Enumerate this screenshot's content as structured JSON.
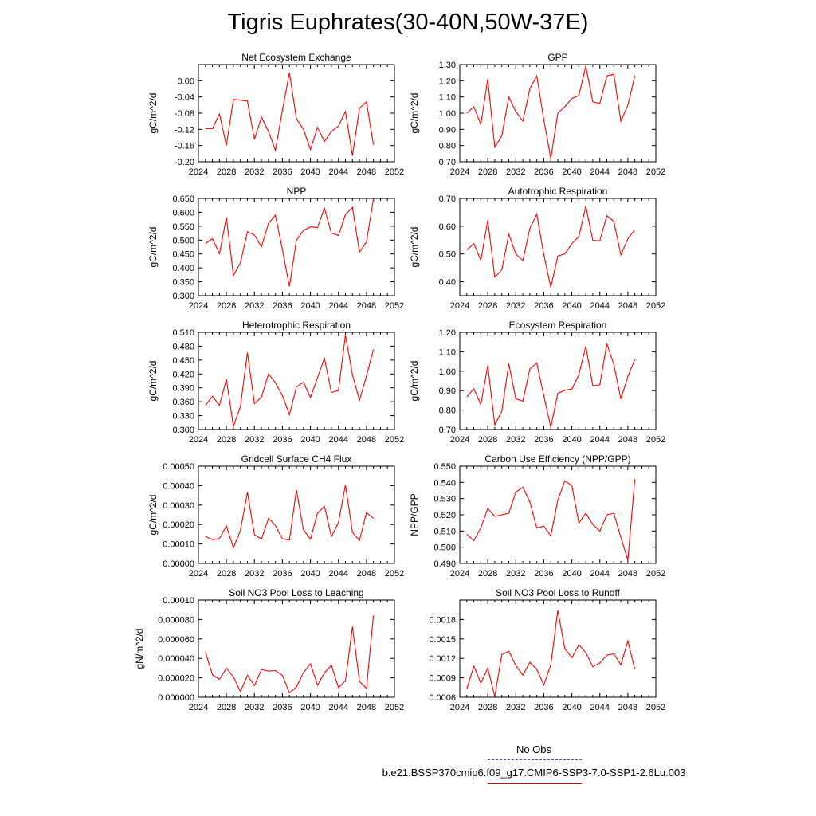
{
  "title": "Tigris Euphrates(30-40N,50W-37E)",
  "colors": {
    "series": "#ff0000",
    "axis": "#000000",
    "noobs": "#5050c8"
  },
  "legend": {
    "noobs_label": "No Obs",
    "case_label": "b.e21.BSSP370cmip6.f09_g17.CMIP6-SSP3-7.0-SSP1-2.6Lu.003"
  },
  "chart_data": [
    {
      "type": "line",
      "title": "Net Ecosystem Exchange",
      "ylabel": "gC/m^2/d",
      "xlim": [
        2024,
        2052
      ],
      "xticks": [
        "2024",
        "2028",
        "2032",
        "2036",
        "2040",
        "2044",
        "2048",
        "2052"
      ],
      "ylim": [
        -0.2,
        0.04
      ],
      "yticks": [
        "-0.20",
        "-0.16",
        "-0.12",
        "-0.08",
        "-0.04",
        "0.00"
      ],
      "ytick_values": [
        -0.2,
        -0.16,
        -0.12,
        -0.08,
        -0.04,
        0.0
      ],
      "x": [
        2025,
        2026,
        2027,
        2028,
        2029,
        2030,
        2031,
        2032,
        2033,
        2034,
        2035,
        2036,
        2037,
        2038,
        2039,
        2040,
        2041,
        2042,
        2043,
        2044,
        2045,
        2046,
        2047,
        2048,
        2049
      ],
      "values": [
        -0.118,
        -0.118,
        -0.082,
        -0.16,
        -0.046,
        -0.048,
        -0.05,
        -0.145,
        -0.09,
        -0.125,
        -0.172,
        -0.073,
        0.02,
        -0.094,
        -0.12,
        -0.17,
        -0.115,
        -0.15,
        -0.125,
        -0.112,
        -0.076,
        -0.185,
        -0.068,
        -0.052,
        -0.158
      ]
    },
    {
      "type": "line",
      "title": "GPP",
      "ylabel": "gC/m^2/d",
      "xlim": [
        2024,
        2052
      ],
      "xticks": [
        "2024",
        "2028",
        "2032",
        "2036",
        "2040",
        "2044",
        "2048",
        "2052"
      ],
      "ylim": [
        0.7,
        1.3
      ],
      "yticks": [
        "0.70",
        "0.80",
        "0.90",
        "1.00",
        "1.10",
        "1.20",
        "1.30"
      ],
      "ytick_values": [
        0.7,
        0.8,
        0.9,
        1.0,
        1.1,
        1.2,
        1.3
      ],
      "x": [
        2025,
        2026,
        2027,
        2028,
        2029,
        2030,
        2031,
        2032,
        2033,
        2034,
        2035,
        2036,
        2037,
        2038,
        2039,
        2040,
        2041,
        2042,
        2043,
        2044,
        2045,
        2046,
        2047,
        2048,
        2049
      ],
      "values": [
        1.0,
        1.04,
        0.93,
        1.21,
        0.79,
        0.86,
        1.1,
        1.01,
        0.95,
        1.15,
        1.23,
        0.96,
        0.72,
        1.0,
        1.04,
        1.09,
        1.11,
        1.29,
        1.07,
        1.06,
        1.23,
        1.24,
        0.95,
        1.05,
        1.23
      ]
    },
    {
      "type": "line",
      "title": "NPP",
      "ylabel": "gC/m^2/d",
      "xlim": [
        2024,
        2052
      ],
      "xticks": [
        "2024",
        "2028",
        "2032",
        "2036",
        "2040",
        "2044",
        "2048",
        "2052"
      ],
      "ylim": [
        0.3,
        0.65
      ],
      "yticks": [
        "0.300",
        "0.350",
        "0.400",
        "0.450",
        "0.500",
        "0.550",
        "0.600",
        "0.650"
      ],
      "ytick_values": [
        0.3,
        0.35,
        0.4,
        0.45,
        0.5,
        0.55,
        0.6,
        0.65
      ],
      "x": [
        2025,
        2026,
        2027,
        2028,
        2029,
        2030,
        2031,
        2032,
        2033,
        2034,
        2035,
        2036,
        2037,
        2038,
        2039,
        2040,
        2041,
        2042,
        2043,
        2044,
        2045,
        2046,
        2047,
        2048,
        2049
      ],
      "values": [
        0.488,
        0.505,
        0.451,
        0.583,
        0.373,
        0.418,
        0.53,
        0.518,
        0.476,
        0.56,
        0.59,
        0.466,
        0.333,
        0.5,
        0.535,
        0.548,
        0.545,
        0.615,
        0.525,
        0.517,
        0.592,
        0.618,
        0.457,
        0.493,
        0.648
      ]
    },
    {
      "type": "line",
      "title": "Autotrophic Respiration",
      "ylabel": "gC/m^2/d",
      "xlim": [
        2024,
        2052
      ],
      "xticks": [
        "2024",
        "2028",
        "2032",
        "2036",
        "2040",
        "2044",
        "2048",
        "2052"
      ],
      "ylim": [
        0.35,
        0.7
      ],
      "yticks": [
        "0.40",
        "0.50",
        "0.60",
        "0.70"
      ],
      "ytick_values": [
        0.4,
        0.5,
        0.6,
        0.7
      ],
      "x": [
        2025,
        2026,
        2027,
        2028,
        2029,
        2030,
        2031,
        2032,
        2033,
        2034,
        2035,
        2036,
        2037,
        2038,
        2039,
        2040,
        2041,
        2042,
        2043,
        2044,
        2045,
        2046,
        2047,
        2048,
        2049
      ],
      "values": [
        0.515,
        0.537,
        0.477,
        0.622,
        0.417,
        0.443,
        0.571,
        0.5,
        0.476,
        0.592,
        0.643,
        0.498,
        0.38,
        0.493,
        0.5,
        0.537,
        0.563,
        0.672,
        0.549,
        0.547,
        0.638,
        0.617,
        0.496,
        0.555,
        0.587
      ]
    },
    {
      "type": "line",
      "title": "Heterotrophic Respiration",
      "ylabel": "gC/m^2/d",
      "xlim": [
        2024,
        2052
      ],
      "xticks": [
        "2024",
        "2028",
        "2032",
        "2036",
        "2040",
        "2044",
        "2048",
        "2052"
      ],
      "ylim": [
        0.3,
        0.51
      ],
      "yticks": [
        "0.300",
        "0.330",
        "0.360",
        "0.390",
        "0.420",
        "0.450",
        "0.480",
        "0.510"
      ],
      "ytick_values": [
        0.3,
        0.33,
        0.36,
        0.39,
        0.42,
        0.45,
        0.48,
        0.51
      ],
      "x": [
        2025,
        2026,
        2027,
        2028,
        2029,
        2030,
        2031,
        2032,
        2033,
        2034,
        2035,
        2036,
        2037,
        2038,
        2039,
        2040,
        2041,
        2042,
        2043,
        2044,
        2045,
        2046,
        2047,
        2048,
        2049
      ],
      "values": [
        0.352,
        0.372,
        0.352,
        0.409,
        0.307,
        0.35,
        0.466,
        0.356,
        0.37,
        0.42,
        0.401,
        0.373,
        0.332,
        0.392,
        0.402,
        0.369,
        0.412,
        0.454,
        0.38,
        0.384,
        0.504,
        0.418,
        0.363,
        0.416,
        0.473
      ]
    },
    {
      "type": "line",
      "title": "Ecosystem Respiration",
      "ylabel": "gC/m^2/d",
      "xlim": [
        2024,
        2052
      ],
      "xticks": [
        "2024",
        "2028",
        "2032",
        "2036",
        "2040",
        "2044",
        "2048",
        "2052"
      ],
      "ylim": [
        0.7,
        1.2
      ],
      "yticks": [
        "0.70",
        "0.80",
        "0.90",
        "1.00",
        "1.10",
        "1.20"
      ],
      "ytick_values": [
        0.7,
        0.8,
        0.9,
        1.0,
        1.1,
        1.2
      ],
      "x": [
        2025,
        2026,
        2027,
        2028,
        2029,
        2030,
        2031,
        2032,
        2033,
        2034,
        2035,
        2036,
        2037,
        2038,
        2039,
        2040,
        2041,
        2042,
        2043,
        2044,
        2045,
        2046,
        2047,
        2048,
        2049
      ],
      "values": [
        0.868,
        0.91,
        0.828,
        1.03,
        0.724,
        0.794,
        1.038,
        0.858,
        0.846,
        1.012,
        1.042,
        0.874,
        0.712,
        0.886,
        0.902,
        0.908,
        0.982,
        1.128,
        0.926,
        0.93,
        1.142,
        1.034,
        0.857,
        0.973,
        1.06
      ]
    },
    {
      "type": "line",
      "title": "Gridcell Surface CH4 Flux",
      "ylabel": "gC/m^2/d",
      "xlim": [
        2024,
        2052
      ],
      "xticks": [
        "2024",
        "2028",
        "2032",
        "2036",
        "2040",
        "2044",
        "2048",
        "2052"
      ],
      "ylim": [
        0.0,
        0.0005
      ],
      "yticks": [
        "0.00000",
        "0.00010",
        "0.00020",
        "0.00030",
        "0.00040",
        "0.00050"
      ],
      "ytick_values": [
        0.0,
        0.0001,
        0.0002,
        0.0003,
        0.0004,
        0.0005
      ],
      "x": [
        2025,
        2026,
        2027,
        2028,
        2029,
        2030,
        2031,
        2032,
        2033,
        2034,
        2035,
        2036,
        2037,
        2038,
        2039,
        2040,
        2041,
        2042,
        2043,
        2044,
        2045,
        2046,
        2047,
        2048,
        2049
      ],
      "values": [
        0.000138,
        0.000122,
        0.000128,
        0.000193,
        8e-05,
        0.00017,
        0.000365,
        0.000148,
        0.000125,
        0.000232,
        0.000195,
        0.000127,
        0.00012,
        0.000378,
        0.000173,
        0.000125,
        0.000258,
        0.000294,
        0.000138,
        0.00021,
        0.000404,
        0.00016,
        0.000118,
        0.000262,
        0.000232
      ]
    },
    {
      "type": "line",
      "title": "Carbon Use Efficiency (NPP/GPP)",
      "ylabel": "NPP/GPP",
      "xlim": [
        2024,
        2052
      ],
      "xticks": [
        "2024",
        "2028",
        "2032",
        "2036",
        "2040",
        "2044",
        "2048",
        "2052"
      ],
      "ylim": [
        0.49,
        0.55
      ],
      "yticks": [
        "0.490",
        "0.500",
        "0.510",
        "0.520",
        "0.530",
        "0.540",
        "0.550"
      ],
      "ytick_values": [
        0.49,
        0.5,
        0.51,
        0.52,
        0.53,
        0.54,
        0.55
      ],
      "x": [
        2025,
        2026,
        2027,
        2028,
        2029,
        2030,
        2031,
        2032,
        2033,
        2034,
        2035,
        2036,
        2037,
        2038,
        2039,
        2040,
        2041,
        2042,
        2043,
        2044,
        2045,
        2046,
        2047,
        2048,
        2049
      ],
      "values": [
        0.508,
        0.504,
        0.512,
        0.524,
        0.519,
        0.52,
        0.521,
        0.534,
        0.537,
        0.528,
        0.512,
        0.513,
        0.507,
        0.529,
        0.541,
        0.538,
        0.515,
        0.521,
        0.514,
        0.51,
        0.52,
        0.521,
        0.506,
        0.492,
        0.542
      ]
    },
    {
      "type": "line",
      "title": "Soil NO3 Pool Loss to Leaching",
      "ylabel": "gN/m^2/d",
      "xlim": [
        2024,
        2052
      ],
      "xticks": [
        "2024",
        "2028",
        "2032",
        "2036",
        "2040",
        "2044",
        "2048",
        "2052"
      ],
      "ylim": [
        0.0,
        0.0001
      ],
      "yticks": [
        "0.000000",
        "0.000020",
        "0.000040",
        "0.000060",
        "0.000080",
        "0.00010"
      ],
      "ytick_values": [
        0.0,
        2e-05,
        4e-05,
        6e-05,
        8e-05,
        0.0001
      ],
      "x": [
        2025,
        2026,
        2027,
        2028,
        2029,
        2030,
        2031,
        2032,
        2033,
        2034,
        2035,
        2036,
        2037,
        2038,
        2039,
        2040,
        2041,
        2042,
        2043,
        2044,
        2045,
        2046,
        2047,
        2048,
        2049
      ],
      "values": [
        4.65e-05,
        2.3e-05,
        1.85e-05,
        3e-05,
        2.1e-05,
        6e-06,
        2.25e-05,
        1.2e-05,
        2.85e-05,
        2.7e-05,
        2.75e-05,
        2.25e-05,
        4.5e-06,
        1.05e-05,
        2.55e-05,
        3.45e-05,
        1.25e-05,
        2.5e-05,
        3.3e-05,
        1e-05,
        1.7e-05,
        7.25e-05,
        1.65e-05,
        9e-06,
        8.4e-05
      ]
    },
    {
      "type": "line",
      "title": "Soil NO3 Pool Loss to Runoff",
      "ylabel": "",
      "xlim": [
        2024,
        2052
      ],
      "xticks": [
        "2024",
        "2028",
        "2032",
        "2036",
        "2040",
        "2044",
        "2048",
        "2052"
      ],
      "ylim": [
        0.0006,
        0.0021
      ],
      "yticks": [
        "0.0006",
        "0.0009",
        "0.0012",
        "0.0015",
        "0.0018"
      ],
      "ytick_values": [
        0.0006,
        0.0009,
        0.0012,
        0.0015,
        0.0018
      ],
      "x": [
        2025,
        2026,
        2027,
        2028,
        2029,
        2030,
        2031,
        2032,
        2033,
        2034,
        2035,
        2036,
        2037,
        2038,
        2039,
        2040,
        2041,
        2042,
        2043,
        2044,
        2045,
        2046,
        2047,
        2048,
        2049
      ],
      "values": [
        0.00073,
        0.00108,
        0.00082,
        0.00105,
        0.00061,
        0.00126,
        0.00131,
        0.00109,
        0.00094,
        0.00114,
        0.00103,
        0.00079,
        0.0011,
        0.00194,
        0.00135,
        0.00121,
        0.00141,
        0.00129,
        0.00107,
        0.00113,
        0.00125,
        0.00127,
        0.0011,
        0.00147,
        0.00103
      ]
    }
  ]
}
